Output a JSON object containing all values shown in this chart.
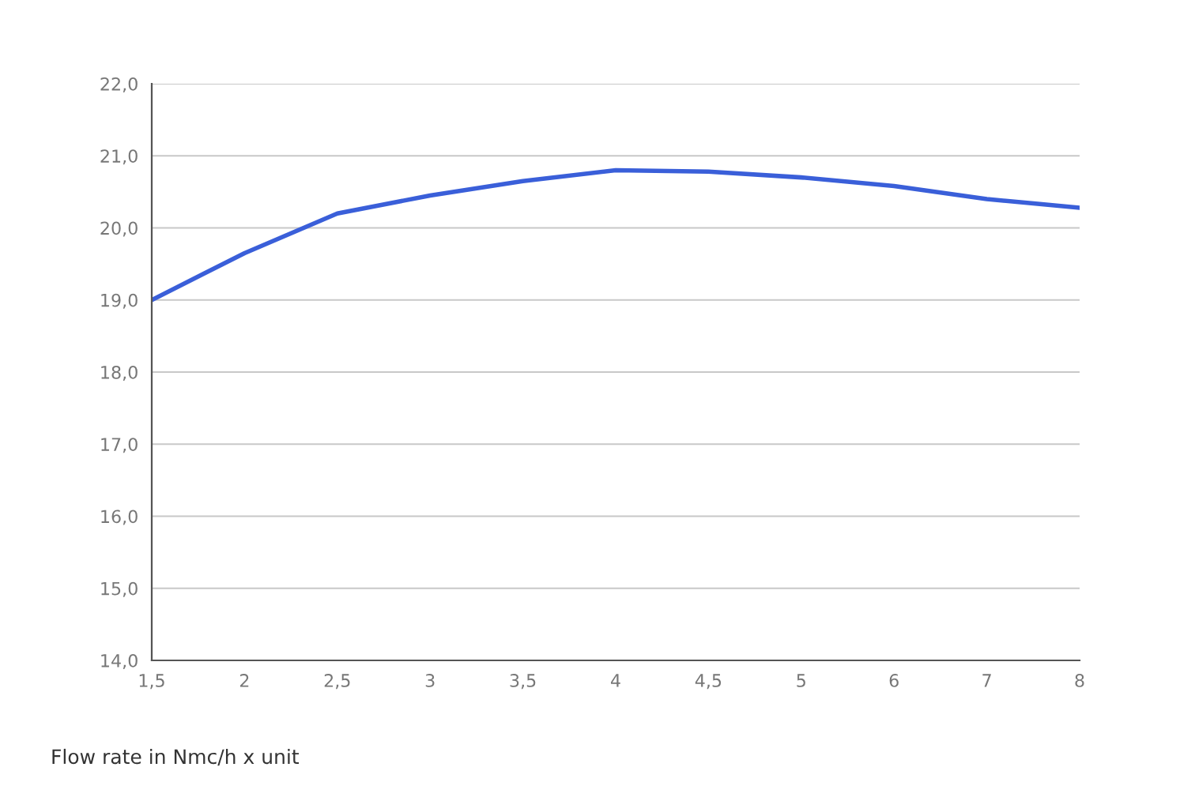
{
  "chart_data": {
    "type": "line",
    "xlabel": "Flow rate in Nmc/h x unit",
    "categories": [
      "1,5",
      "2",
      "2,5",
      "3",
      "3,5",
      "4",
      "4,5",
      "5",
      "6",
      "7",
      "8"
    ],
    "series": [
      {
        "color": "#3a5fd9",
        "values": [
          19.0,
          19.65,
          20.2,
          20.45,
          20.65,
          20.8,
          20.78,
          20.7,
          20.58,
          20.4,
          20.28
        ]
      }
    ],
    "ylim": [
      14,
      22
    ],
    "yticks": [
      {
        "value": 14,
        "label": "14,0"
      },
      {
        "value": 15,
        "label": "15,0"
      },
      {
        "value": 16,
        "label": "16,0"
      },
      {
        "value": 17,
        "label": "17,0"
      },
      {
        "value": 18,
        "label": "18,0"
      },
      {
        "value": 19,
        "label": "19,0"
      },
      {
        "value": 20,
        "label": "20,0"
      },
      {
        "value": 21,
        "label": "21,0"
      },
      {
        "value": 22,
        "label": "22,0"
      }
    ],
    "grid": "y",
    "marker": "none",
    "line_style": "solid"
  }
}
